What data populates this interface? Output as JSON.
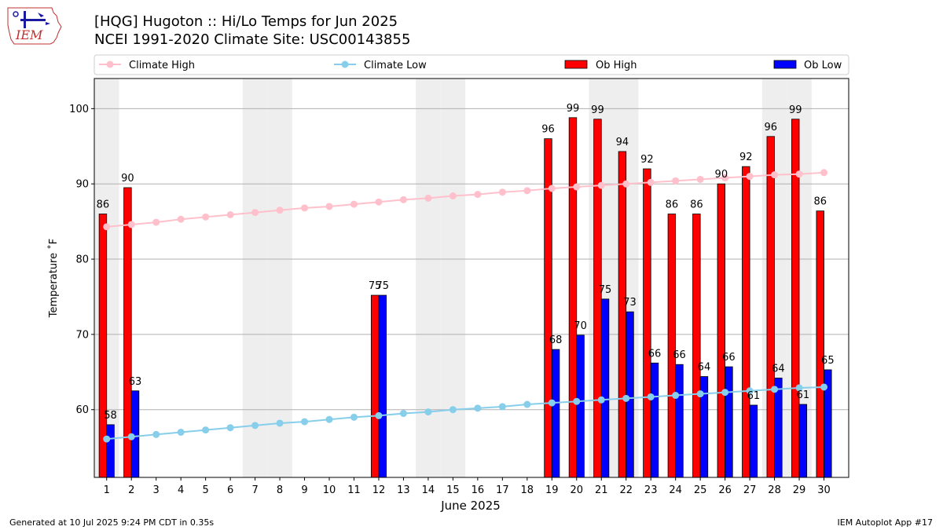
{
  "header": {
    "title_line1": "[HQG] Hugoton :: Hi/Lo Temps for Jun 2025",
    "title_line2": "NCEI 1991-2020 Climate Site: USC00143855",
    "logo_text": "IEM"
  },
  "footer": {
    "left": "Generated at 10 Jul 2025 9:24 PM CDT in 0.35s",
    "right": "IEM Autoplot App #17"
  },
  "colors": {
    "ob_high": "#ff0000",
    "ob_low": "#0000ff",
    "climate_high": "#ffc0cb",
    "climate_low": "#87ceeb",
    "weekend_shade": "#eeeeee",
    "grid": "#b0b0b0"
  },
  "chart_data": {
    "type": "bar",
    "xlabel": "June 2025",
    "ylabel": "Temperature ˚F",
    "ylim": [
      51,
      104
    ],
    "yticks": [
      60,
      70,
      80,
      90,
      100
    ],
    "grid": "horizontal",
    "legend_placement": "top",
    "categories": [
      "1",
      "2",
      "3",
      "4",
      "5",
      "6",
      "7",
      "8",
      "9",
      "10",
      "11",
      "12",
      "13",
      "14",
      "15",
      "16",
      "17",
      "18",
      "19",
      "20",
      "21",
      "22",
      "23",
      "24",
      "25",
      "26",
      "27",
      "28",
      "29",
      "30"
    ],
    "weekend_days": [
      1,
      7,
      8,
      14,
      15,
      21,
      22,
      28,
      29
    ],
    "series": [
      {
        "name": "Climate High",
        "type": "line",
        "values": [
          84.3,
          84.6,
          84.9,
          85.3,
          85.6,
          85.9,
          86.2,
          86.5,
          86.8,
          87.0,
          87.3,
          87.6,
          87.9,
          88.1,
          88.4,
          88.6,
          88.9,
          89.1,
          89.4,
          89.6,
          89.8,
          90.0,
          90.2,
          90.4,
          90.6,
          90.8,
          91.0,
          91.2,
          91.3,
          91.5
        ]
      },
      {
        "name": "Climate Low",
        "type": "line",
        "values": [
          56.1,
          56.4,
          56.7,
          57.0,
          57.3,
          57.6,
          57.9,
          58.2,
          58.4,
          58.7,
          59.0,
          59.2,
          59.5,
          59.7,
          60.0,
          60.2,
          60.4,
          60.7,
          60.9,
          61.1,
          61.3,
          61.5,
          61.7,
          61.9,
          62.1,
          62.3,
          62.5,
          62.7,
          62.9,
          63.0
        ]
      },
      {
        "name": "Ob High",
        "type": "bar",
        "values": [
          86,
          89.5,
          null,
          null,
          null,
          null,
          null,
          null,
          null,
          null,
          null,
          75.2,
          null,
          null,
          null,
          null,
          null,
          null,
          96,
          98.8,
          98.6,
          94.3,
          92,
          86,
          86,
          90,
          92.3,
          96.3,
          98.6,
          86.4
        ]
      },
      {
        "name": "Ob Low",
        "type": "bar",
        "values": [
          58,
          62.5,
          null,
          null,
          null,
          null,
          null,
          null,
          null,
          null,
          null,
          75.2,
          null,
          null,
          null,
          null,
          null,
          null,
          68,
          69.9,
          74.7,
          73,
          66.2,
          66,
          64.4,
          65.7,
          60.6,
          64.2,
          60.7,
          65.3
        ]
      }
    ],
    "data_labels": {
      "ob_high": [
        "86",
        "90",
        null,
        null,
        null,
        null,
        null,
        null,
        null,
        null,
        null,
        "75",
        null,
        null,
        null,
        null,
        null,
        null,
        "96",
        "99",
        "99",
        "94",
        "92",
        "86",
        "86",
        "90",
        "92",
        "96",
        "99",
        "86"
      ],
      "ob_low": [
        "58",
        "63",
        null,
        null,
        null,
        null,
        null,
        null,
        null,
        null,
        null,
        "75",
        null,
        null,
        null,
        null,
        null,
        null,
        "68",
        "70",
        "75",
        "73",
        "66",
        "66",
        "64",
        "66",
        "61",
        "64",
        "61",
        "65"
      ]
    }
  }
}
